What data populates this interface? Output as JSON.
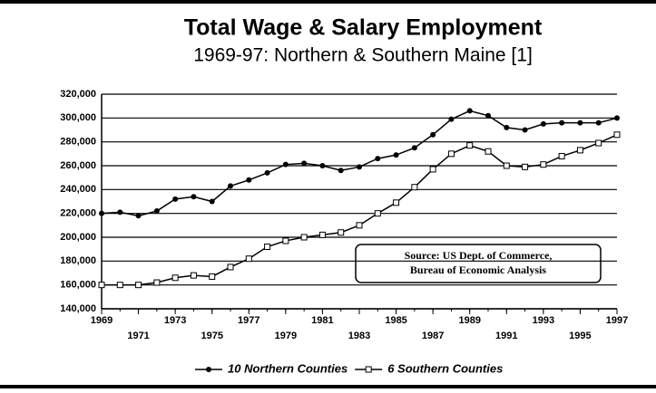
{
  "chart_data": {
    "type": "line",
    "title": "Total Wage & Salary Employment",
    "subtitle": "1969-97: Northern & Southern Maine [1]",
    "annotations": [
      "Source: US Dept. of Commerce,",
      "Bureau of Economic Analysis"
    ],
    "x": [
      1969,
      1970,
      1971,
      1972,
      1973,
      1974,
      1975,
      1976,
      1977,
      1978,
      1979,
      1980,
      1981,
      1982,
      1983,
      1984,
      1985,
      1986,
      1987,
      1988,
      1989,
      1990,
      1991,
      1992,
      1993,
      1994,
      1995,
      1996,
      1997
    ],
    "xlim": [
      1969,
      1997
    ],
    "xticks": [
      1969,
      1971,
      1973,
      1975,
      1977,
      1979,
      1981,
      1983,
      1985,
      1987,
      1989,
      1991,
      1993,
      1995,
      1997
    ],
    "ylim": [
      140000,
      320000
    ],
    "yticks": [
      {
        "value": 140000,
        "label": "140,000"
      },
      {
        "value": 160000,
        "label": "160,000"
      },
      {
        "value": 180000,
        "label": "180,000"
      },
      {
        "value": 200000,
        "label": "200,000"
      },
      {
        "value": 220000,
        "label": "220,000"
      },
      {
        "value": 240000,
        "label": "240,000"
      },
      {
        "value": 260000,
        "label": "260,000"
      },
      {
        "value": 280000,
        "label": "280,000"
      },
      {
        "value": 300000,
        "label": "300,000"
      },
      {
        "value": 320000,
        "label": "320,000"
      }
    ],
    "grid": true,
    "legend": "bottom",
    "series": [
      {
        "name": "10 Northern Counties",
        "color": "#000000",
        "marker": "circle",
        "values": [
          220000,
          221000,
          218000,
          222000,
          232000,
          234000,
          230000,
          243000,
          248000,
          254000,
          261000,
          262000,
          260000,
          256000,
          259000,
          266000,
          269000,
          275000,
          286000,
          299000,
          306000,
          302000,
          292000,
          290000,
          295000,
          296000,
          296000,
          296000,
          300000
        ]
      },
      {
        "name": "6 Southern Counties",
        "color": "#000000",
        "marker": "square",
        "values": [
          160000,
          160000,
          160000,
          162000,
          166000,
          168000,
          167000,
          175000,
          182000,
          192000,
          197000,
          200000,
          202000,
          204000,
          210000,
          220000,
          229000,
          242000,
          257000,
          270000,
          277000,
          272000,
          260000,
          259000,
          261000,
          268000,
          273000,
          279000,
          286000
        ]
      }
    ]
  }
}
